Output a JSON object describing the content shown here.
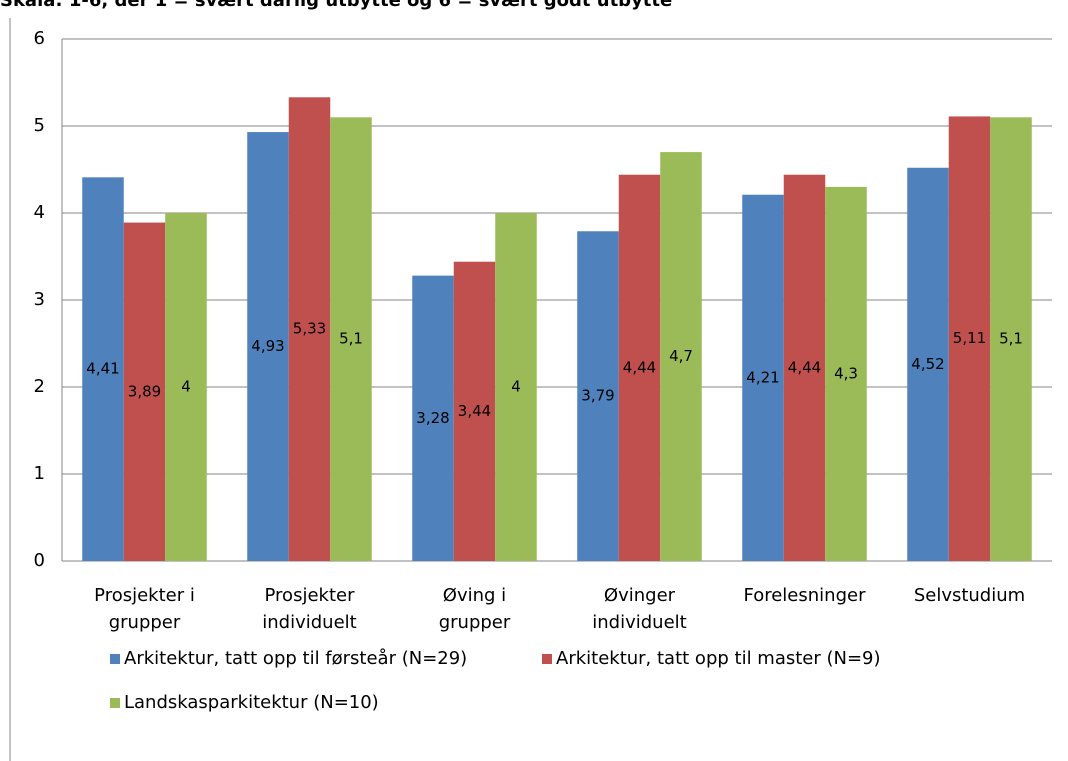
{
  "chart_data": {
    "type": "bar",
    "title": "Skala: 1-6, der 1 = svært dårlig utbytte og 6 = svært godt utbytte",
    "categories": [
      [
        "Prosjekter i",
        "grupper"
      ],
      [
        "Prosjekter",
        "individuelt"
      ],
      [
        "Øving i",
        "grupper"
      ],
      [
        "Øvinger",
        "individuelt"
      ],
      [
        "Forelesninger"
      ],
      [
        "Selvstudium"
      ]
    ],
    "series": [
      {
        "name": "Arkitektur, tatt opp til førsteår (N=29)",
        "color": "#4f81bd",
        "values": [
          4.41,
          4.93,
          3.28,
          3.79,
          4.21,
          4.52
        ],
        "value_labels": [
          "4,41",
          "4,93",
          "3,28",
          "3,79",
          "4,21",
          "4,52"
        ]
      },
      {
        "name": "Arkitektur, tatt opp til master (N=9)",
        "color": "#c0504d",
        "values": [
          3.89,
          5.33,
          3.44,
          4.44,
          4.44,
          5.11
        ],
        "value_labels": [
          "3,89",
          "5,33",
          "3,44",
          "4,44",
          "4,44",
          "5,11"
        ]
      },
      {
        "name": "Landskasparkitektur (N=10)",
        "color": "#9bbb59",
        "values": [
          4,
          5.1,
          4,
          4.7,
          4.3,
          5.1
        ],
        "value_labels": [
          "4",
          "5,1",
          "4",
          "4,7",
          "4,3",
          "5,1"
        ]
      }
    ],
    "ylim": [
      0,
      6
    ],
    "yticks": [
      0,
      1,
      2,
      3,
      4,
      5,
      6
    ],
    "grid": true,
    "legend": "bottom"
  }
}
